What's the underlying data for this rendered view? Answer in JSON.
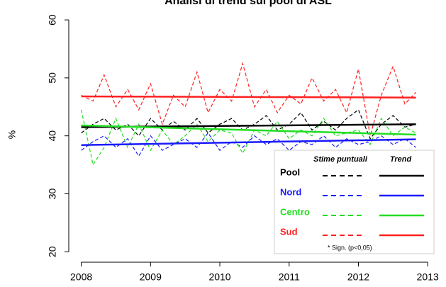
{
  "chart_data": {
    "type": "line",
    "title": "Analisi di trend sui pool di ASL",
    "y_label": "%",
    "x": [
      2008,
      2008.17,
      2008.33,
      2008.5,
      2008.67,
      2008.83,
      2009,
      2009.17,
      2009.33,
      2009.5,
      2009.67,
      2009.83,
      2010,
      2010.17,
      2010.33,
      2010.5,
      2010.67,
      2010.83,
      2011,
      2011.17,
      2011.33,
      2011.5,
      2011.67,
      2011.83,
      2012,
      2012.17,
      2012.33,
      2012.5,
      2012.67,
      2012.83
    ],
    "series": [
      {
        "name": "Pool",
        "color": "#000000",
        "values": [
          40.5,
          42,
          43,
          41,
          42,
          40,
          43,
          41,
          42.5,
          41,
          43,
          40.5,
          42,
          43,
          41,
          42,
          43.5,
          41,
          42,
          44,
          41,
          42.5,
          41,
          43,
          44.5,
          39.5,
          42,
          43.5,
          41.5,
          42
        ],
        "trend": [
          41.5,
          42
        ]
      },
      {
        "name": "Nord",
        "color": "#1a1aff",
        "values": [
          37.5,
          39,
          40,
          38,
          39.5,
          36.5,
          40,
          37.5,
          38.5,
          39.5,
          38,
          40.5,
          37.5,
          39,
          38,
          40,
          38.5,
          39.5,
          37.5,
          39,
          38.5,
          40,
          38,
          39.5,
          38.5,
          39,
          40,
          38.5,
          39.5,
          38
        ],
        "trend": [
          38.4,
          39.4
        ]
      },
      {
        "name": "Centro",
        "color": "#22dd22",
        "values": [
          44.5,
          35,
          38,
          43,
          38,
          42,
          37.5,
          41,
          38.5,
          40,
          42,
          39,
          41,
          40.5,
          37,
          41,
          40,
          42.5,
          39.5,
          41,
          40,
          43,
          40,
          40.5,
          41,
          38.5,
          43,
          40,
          41.5,
          40.5
        ],
        "trend": [
          41.8,
          40.2
        ]
      },
      {
        "name": "Sud",
        "color": "#ff2020",
        "values": [
          47,
          46,
          50.5,
          45,
          48,
          44.5,
          49,
          42,
          47,
          45,
          51,
          44,
          48,
          46,
          52.5,
          45,
          48,
          44,
          47,
          45.5,
          50,
          46,
          48,
          44,
          51.5,
          40,
          47,
          52,
          45.5,
          47.5
        ],
        "trend": [
          46.8,
          46.6
        ]
      }
    ],
    "legend": {
      "columns": [
        "Stime puntuali",
        "Trend"
      ],
      "note": "* Sign. (p<0,05)"
    },
    "xlim": [
      2007.82,
      2013.09
    ],
    "xticks": [
      2008,
      2009,
      2010,
      2011,
      2012,
      2013
    ],
    "ylim": [
      18.2,
      61.6
    ],
    "yticks": [
      20,
      30,
      40,
      50,
      60
    ]
  }
}
